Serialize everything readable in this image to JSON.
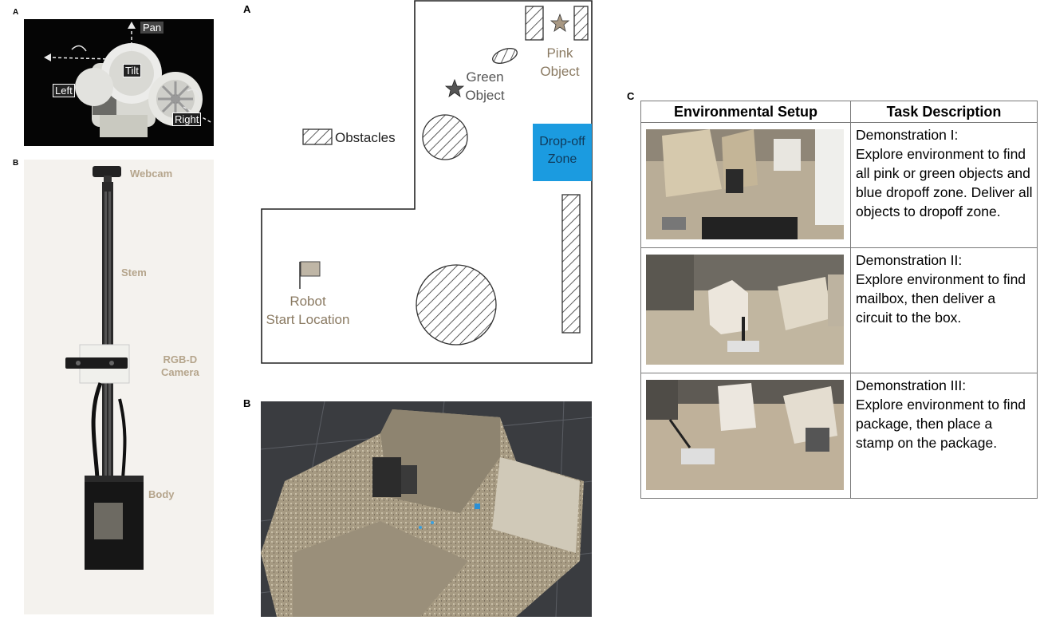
{
  "left": {
    "panel_a_letter": "A",
    "panel_b_letter": "B",
    "head_labels": {
      "pan": "Pan",
      "tilt": "Tilt",
      "left": "Left",
      "right": "Right"
    },
    "robot_labels": {
      "webcam": "Webcam",
      "stem": "Stem",
      "rgbd": "RGB-D\nCamera",
      "body": "Body"
    }
  },
  "map": {
    "panel_letter": "A",
    "pink_object": "Pink\nObject",
    "green_object": "Green\nObject",
    "obstacles": "Obstacles",
    "dropoff_zone": "Drop-off\nZone",
    "robot_start": "Robot\nStart Location",
    "colors": {
      "dropoff": "#1b9be0",
      "pink_star": "#a89883",
      "green_star": "#555555"
    }
  },
  "pointcloud": {
    "panel_letter": "B"
  },
  "table": {
    "panel_letter": "C",
    "headers": [
      "Environmental Setup",
      "Task Description"
    ],
    "rows": [
      {
        "description": "Demonstration I:\nExplore environment to find all pink or green objects and blue dropoff zone. Deliver all objects to dropoff zone."
      },
      {
        "description": "Demonstration II:\nExplore environment to find mailbox, then deliver a circuit to the box."
      },
      {
        "description": "Demonstration III:\nExplore environment to find package, then place a stamp on the package."
      }
    ]
  }
}
